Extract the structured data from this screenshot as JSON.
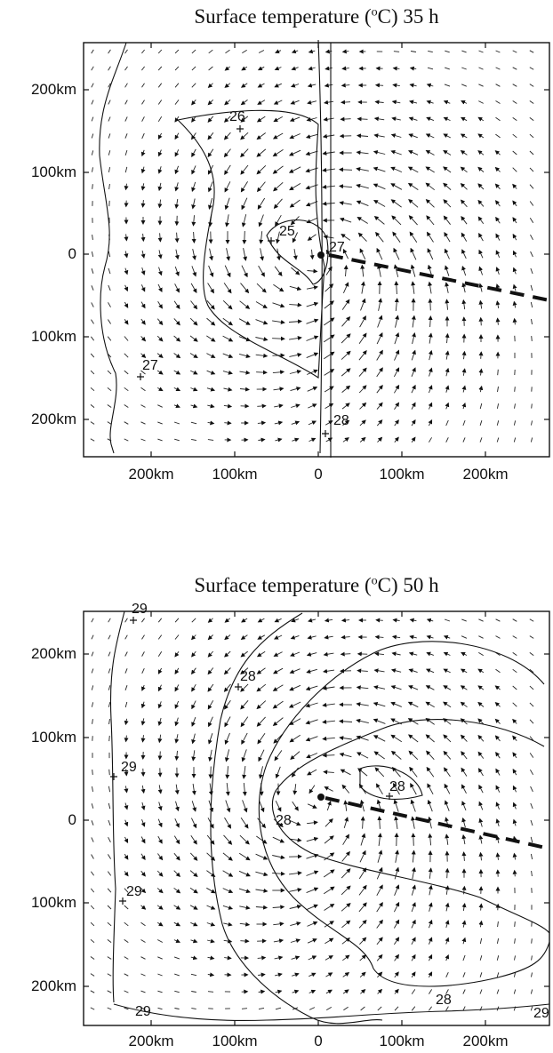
{
  "panels": [
    {
      "title_prefix": "Surface temperature (",
      "title_sup": "o",
      "title_suffix": "C)   35 h",
      "x_ticks": [
        "200km",
        "100km",
        "0",
        "100km",
        "200km"
      ],
      "y_ticks": [
        "200km",
        "100km",
        "0",
        "100km",
        "200km"
      ],
      "contour_labels": [
        "26",
        "25",
        "27",
        "27",
        "28"
      ]
    },
    {
      "title_prefix": "Surface temperature (",
      "title_sup": "o",
      "title_suffix": "C)   50 h",
      "x_ticks": [
        "200km",
        "100km",
        "0",
        "100km",
        "200km"
      ],
      "y_ticks": [
        "200km",
        "100km",
        "0",
        "100km",
        "200km"
      ],
      "contour_labels": [
        "29",
        "28",
        "29",
        "28",
        "28",
        "29",
        "28",
        "29",
        "29"
      ]
    }
  ]
}
